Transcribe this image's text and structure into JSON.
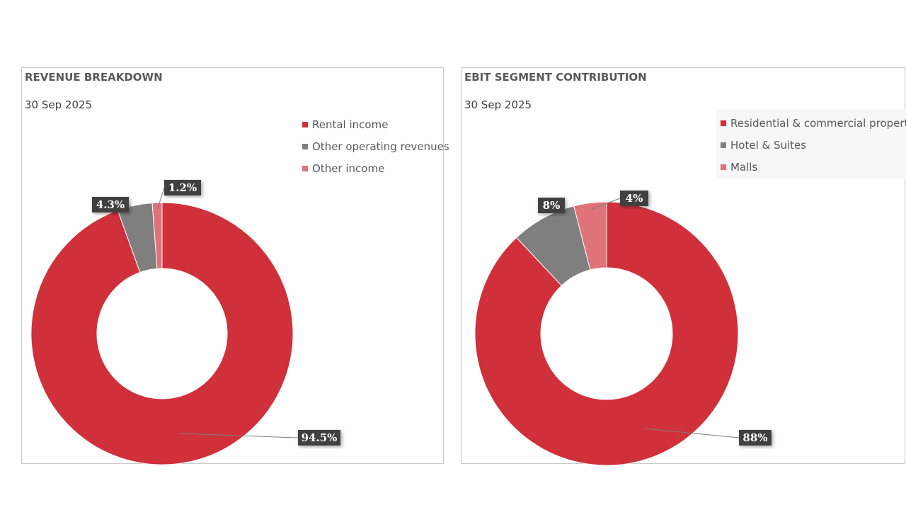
{
  "chart_data": [
    {
      "type": "pie",
      "title": "REVENUE BREAKDOWN",
      "subtitle": "30 Sep 2025",
      "categories": [
        "Rental income",
        "Other operating revenues",
        "Other income"
      ],
      "values": [
        94.5,
        4.3,
        1.2
      ],
      "labels": [
        "94.5%",
        "4.3%",
        "1.2%"
      ],
      "colors": [
        "#d0303a",
        "#7f7f7f",
        "#e0727a"
      ],
      "legend_position": "top-right"
    },
    {
      "type": "pie",
      "title": "EBIT SEGMENT CONTRIBUTION",
      "subtitle": "30 Sep 2025",
      "categories": [
        "Residential & commercial property",
        "Hotel & Suites",
        "Malls"
      ],
      "values": [
        88,
        8,
        4
      ],
      "labels": [
        "88%",
        "8%",
        "4%"
      ],
      "colors": [
        "#d0303a",
        "#7f7f7f",
        "#e0727a"
      ],
      "legend_position": "top-right"
    }
  ]
}
